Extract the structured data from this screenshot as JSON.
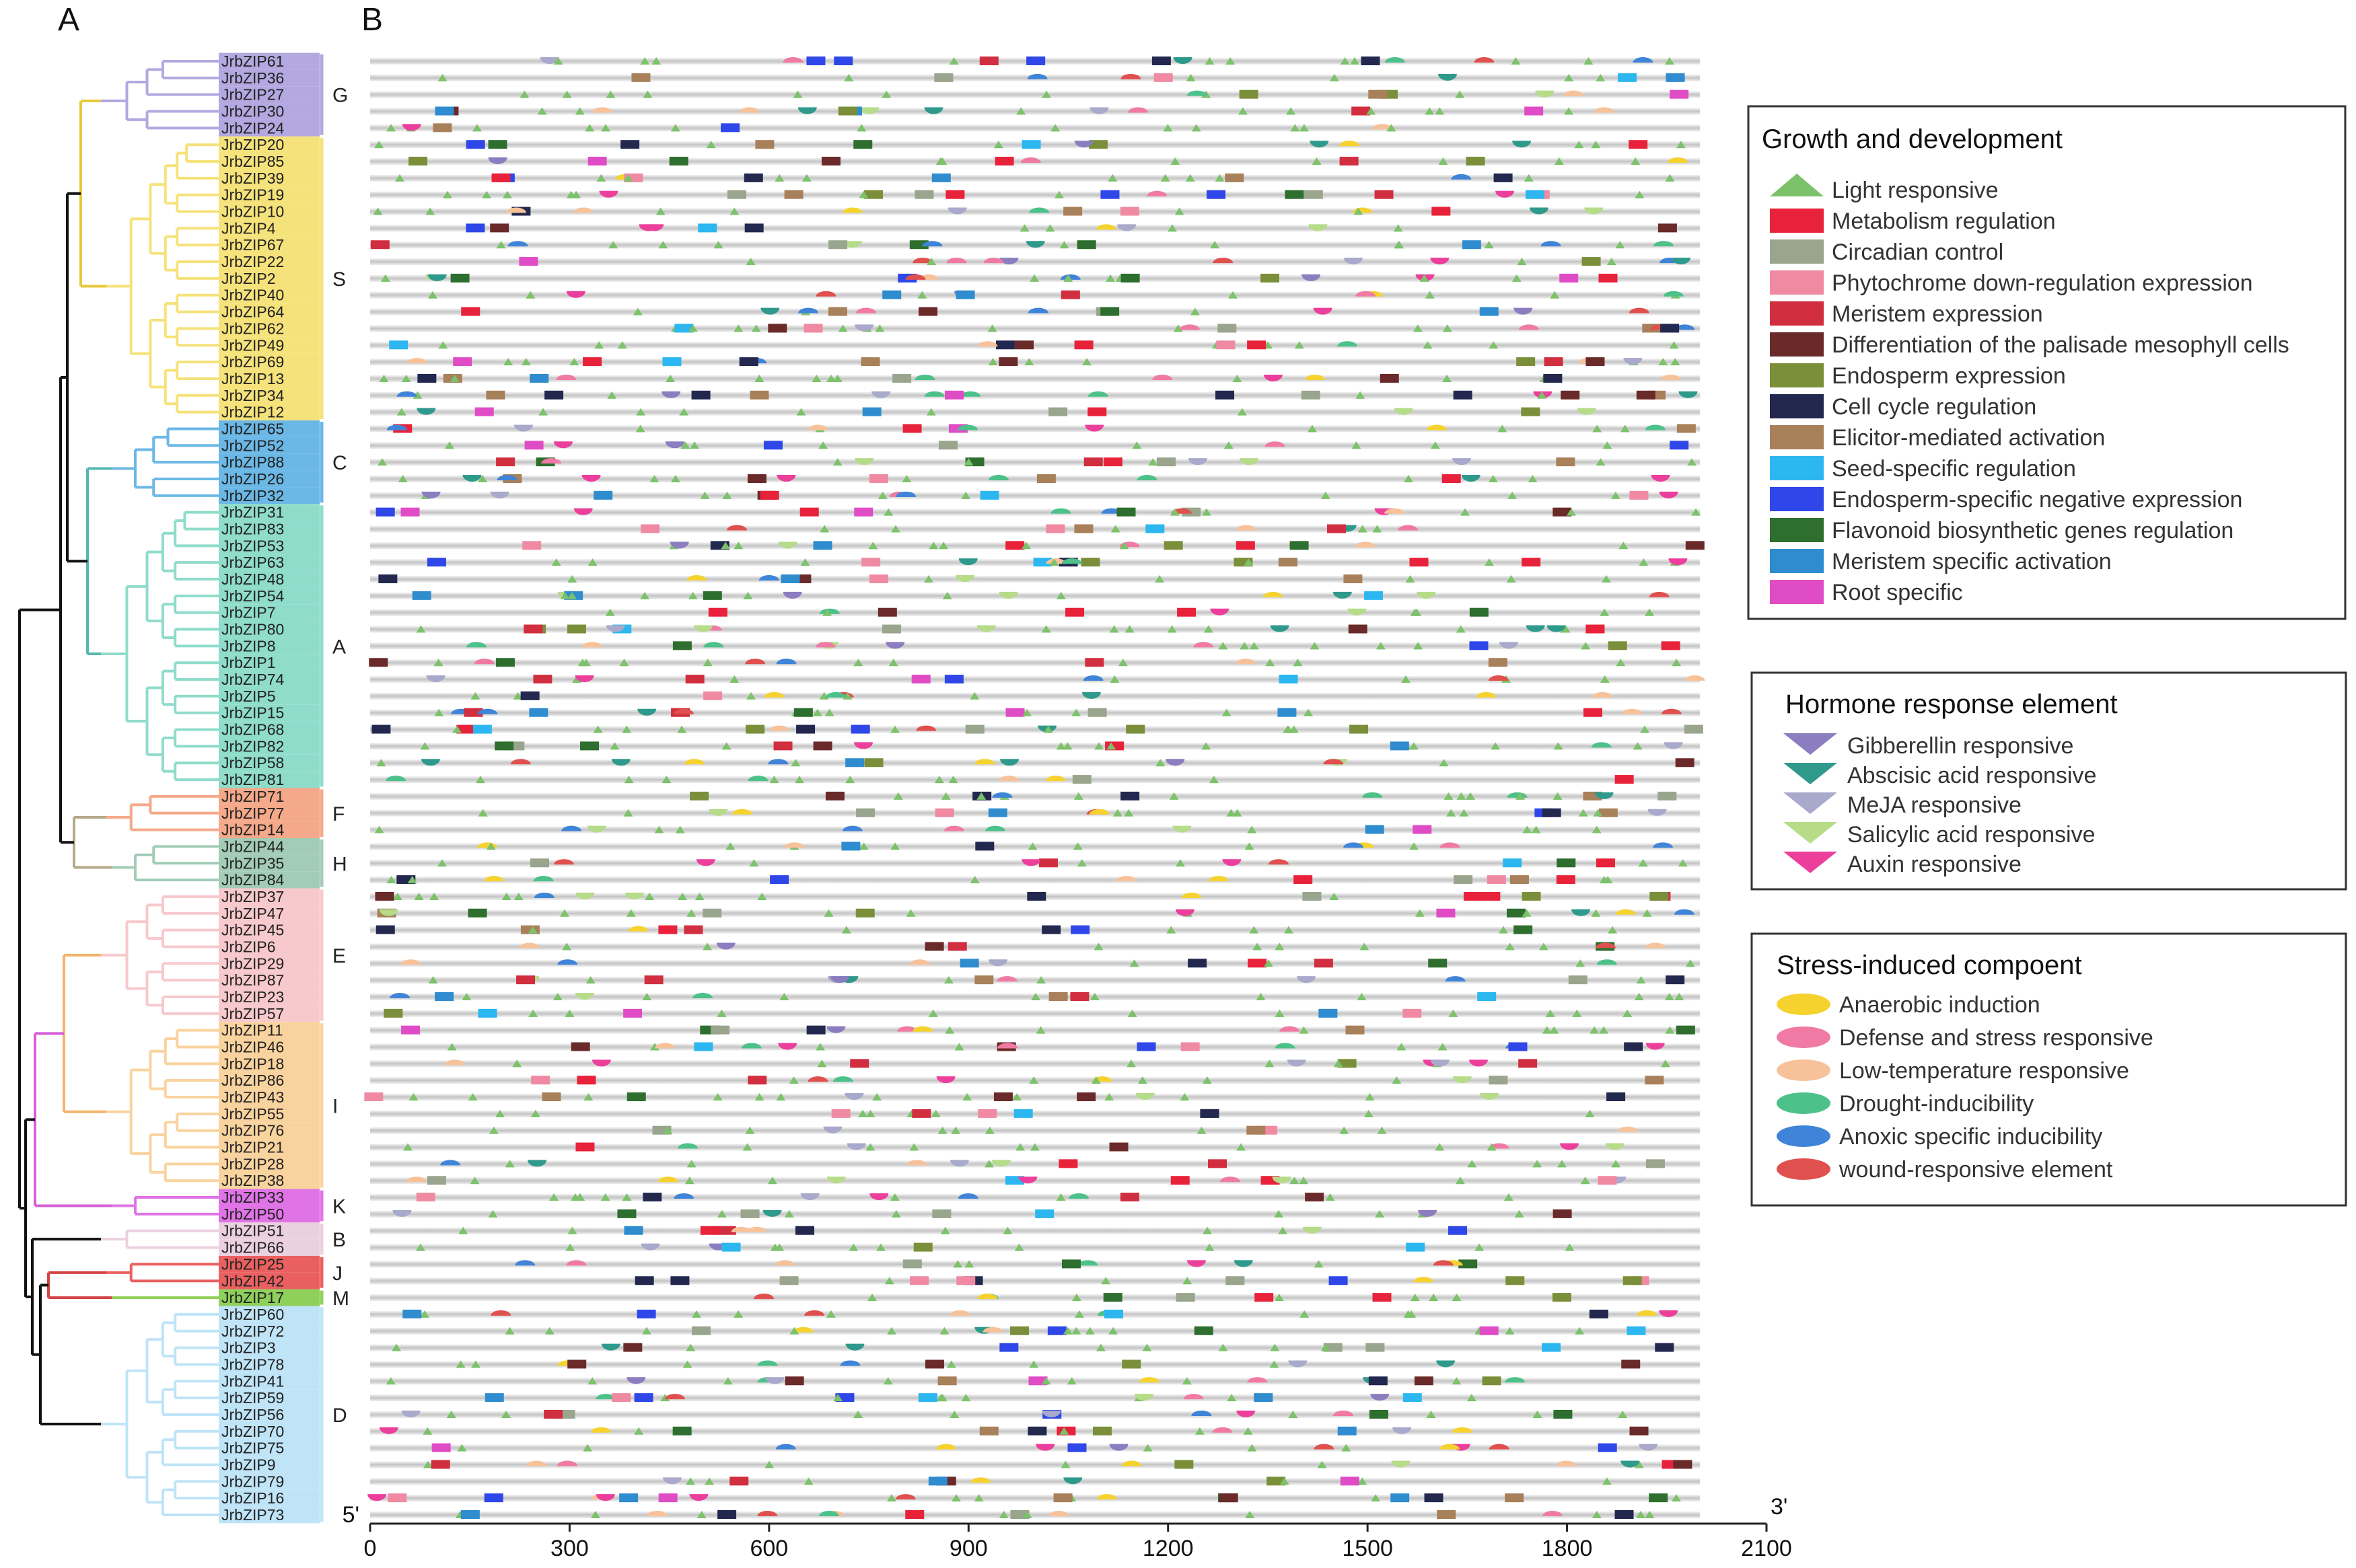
{
  "panels": {
    "a": "A",
    "b": "B"
  },
  "genes": [
    "JrbZIP61",
    "JrbZIP36",
    "JrbZIP27",
    "JrbZIP30",
    "JrbZIP24",
    "JrbZIP20",
    "JrbZIP85",
    "JrbZIP39",
    "JrbZIP19",
    "JrbZIP10",
    "JrbZIP4",
    "JrbZIP67",
    "JrbZIP22",
    "JrbZIP2",
    "JrbZIP40",
    "JrbZIP64",
    "JrbZIP62",
    "JrbZIP49",
    "JrbZIP69",
    "JrbZIP13",
    "JrbZIP34",
    "JrbZIP12",
    "JrbZIP65",
    "JrbZIP52",
    "JrbZIP88",
    "JrbZIP26",
    "JrbZIP32",
    "JrbZIP31",
    "JrbZIP83",
    "JrbZIP53",
    "JrbZIP63",
    "JrbZIP48",
    "JrbZIP54",
    "JrbZIP7",
    "JrbZIP80",
    "JrbZIP8",
    "JrbZIP1",
    "JrbZIP74",
    "JrbZIP5",
    "JrbZIP15",
    "JrbZIP68",
    "JrbZIP82",
    "JrbZIP58",
    "JrbZIP81",
    "JrbZIP71",
    "JrbZIP77",
    "JrbZIP14",
    "JrbZIP44",
    "JrbZIP35",
    "JrbZIP84",
    "JrbZIP37",
    "JrbZIP47",
    "JrbZIP45",
    "JrbZIP6",
    "JrbZIP29",
    "JrbZIP87",
    "JrbZIP23",
    "JrbZIP57",
    "JrbZIP11",
    "JrbZIP46",
    "JrbZIP18",
    "JrbZIP86",
    "JrbZIP43",
    "JrbZIP55",
    "JrbZIP76",
    "JrbZIP21",
    "JrbZIP28",
    "JrbZIP38",
    "JrbZIP33",
    "JrbZIP50",
    "JrbZIP51",
    "JrbZIP66",
    "JrbZIP25",
    "JrbZIP42",
    "JrbZIP17",
    "JrbZIP60",
    "JrbZIP72",
    "JrbZIP3",
    "JrbZIP78",
    "JrbZIP41",
    "JrbZIP59",
    "JrbZIP56",
    "JrbZIP70",
    "JrbZIP75",
    "JrbZIP9",
    "JrbZIP79",
    "JrbZIP16",
    "JrbZIP73"
  ],
  "groups": [
    {
      "label": "G",
      "start": 0,
      "end": 4,
      "color": "#b3a8e0"
    },
    {
      "label": "S",
      "start": 5,
      "end": 21,
      "color": "#f5e27a"
    },
    {
      "label": "C",
      "start": 22,
      "end": 26,
      "color": "#6bb8e6"
    },
    {
      "label": "A",
      "start": 27,
      "end": 43,
      "color": "#8fdccb"
    },
    {
      "label": "F",
      "start": 44,
      "end": 46,
      "color": "#f4a98a"
    },
    {
      "label": "H",
      "start": 47,
      "end": 49,
      "color": "#a3ccb7"
    },
    {
      "label": "E",
      "start": 50,
      "end": 57,
      "color": "#f7c9cc"
    },
    {
      "label": "I",
      "start": 58,
      "end": 67,
      "color": "#f9d39e"
    },
    {
      "label": "K",
      "start": 68,
      "end": 69,
      "color": "#e074e6"
    },
    {
      "label": "B",
      "start": 70,
      "end": 71,
      "color": "#ebd0e0"
    },
    {
      "label": "J",
      "start": 72,
      "end": 73,
      "color": "#ea6060"
    },
    {
      "label": "M",
      "start": 74,
      "end": 74,
      "color": "#8fd05a"
    },
    {
      "label": "D",
      "start": 75,
      "end": 87,
      "color": "#bfe4f7"
    }
  ],
  "tree_colors": {
    "backbone": "#111111"
  },
  "axis": {
    "ticks": [
      "0",
      "300",
      "600",
      "900",
      "1200",
      "1500",
      "1800",
      "2100"
    ],
    "min": 0,
    "max": 2100,
    "end5": "5'",
    "end3": "3'"
  },
  "legend": {
    "growth": {
      "title": "Growth and development",
      "items": [
        {
          "label": "Light responsive",
          "shape": "tri-up",
          "color": "#7cc26a"
        },
        {
          "label": "Metabolism regulation",
          "shape": "rect",
          "color": "#e8223a"
        },
        {
          "label": "Circadian control",
          "shape": "rect",
          "color": "#9aa58e"
        },
        {
          "label": "Phytochrome down-regulation  expression",
          "shape": "rect",
          "color": "#f08aa3"
        },
        {
          "label": "Meristem expression",
          "shape": "rect",
          "color": "#d12e40"
        },
        {
          "label": "Differentiation of the palisade mesophyll cells",
          "shape": "rect",
          "color": "#6b2a2a"
        },
        {
          "label": "Endosperm expression",
          "shape": "rect",
          "color": "#7b8f3a"
        },
        {
          "label": "Cell cycle regulation",
          "shape": "rect",
          "color": "#23284f"
        },
        {
          "label": "Elicitor-mediated activation",
          "shape": "rect",
          "color": "#a8805a"
        },
        {
          "label": "Seed-specific regulation",
          "shape": "rect",
          "color": "#2cb7f0"
        },
        {
          "label": "Endosperm-specific negative expression",
          "shape": "rect",
          "color": "#2f46e8"
        },
        {
          "label": "Flavonoid biosynthetic genes regulation",
          "shape": "rect",
          "color": "#2e6e2e"
        },
        {
          "label": "Meristem specific activation",
          "shape": "rect",
          "color": "#2f8ccf"
        },
        {
          "label": "Root specific",
          "shape": "rect",
          "color": "#e04cc6"
        }
      ]
    },
    "hormone": {
      "title": "Hormone response element",
      "items": [
        {
          "label": "Gibberellin responsive",
          "shape": "tri-down",
          "color": "#8c7dc0"
        },
        {
          "label": "Abscisic acid responsive",
          "shape": "tri-down",
          "color": "#2f9a8c"
        },
        {
          "label": "MeJA responsive",
          "shape": "tri-down",
          "color": "#a9a9cc"
        },
        {
          "label": "Salicylic acid responsive",
          "shape": "tri-down",
          "color": "#b6dc8a"
        },
        {
          "label": "Auxin responsive",
          "shape": "tri-down",
          "color": "#ec3f9b"
        }
      ]
    },
    "stress": {
      "title": "Stress-induced  compoent",
      "items": [
        {
          "label": "Anaerobic induction",
          "shape": "ellipse",
          "color": "#f5d22e"
        },
        {
          "label": "Defense and stress responsive",
          "shape": "ellipse",
          "color": "#f07aa3"
        },
        {
          "label": "Low-temperature responsive",
          "shape": "ellipse",
          "color": "#f7c29a"
        },
        {
          "label": "Drought-inducibility",
          "shape": "ellipse",
          "color": "#4cc189"
        },
        {
          "label": "Anoxic specific inducibility",
          "shape": "ellipse",
          "color": "#3f84d8"
        },
        {
          "label": "wound-responsive element",
          "shape": "ellipse",
          "color": "#e0504e"
        }
      ]
    }
  }
}
